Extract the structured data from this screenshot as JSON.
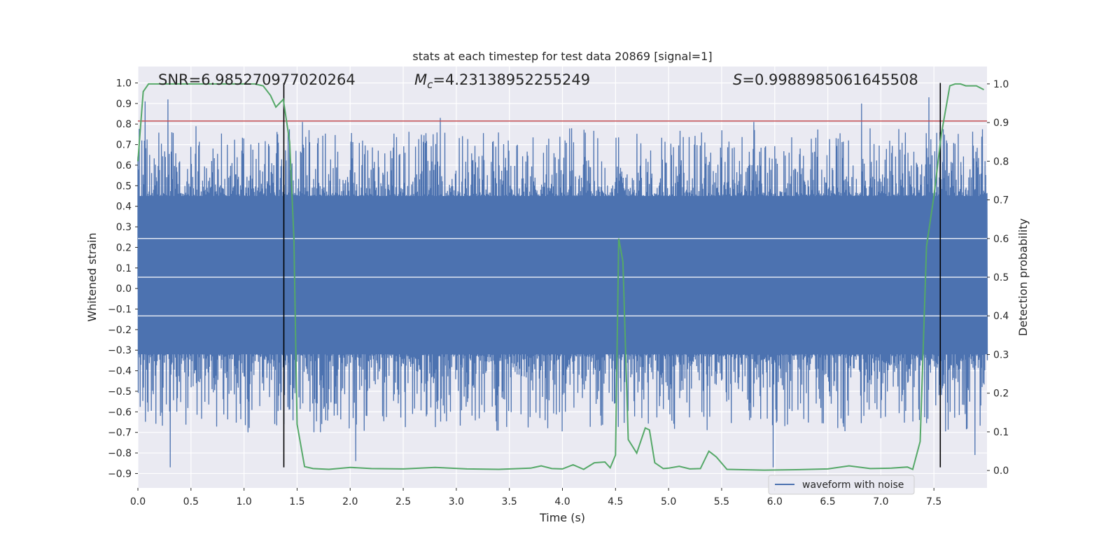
{
  "chart_data": {
    "type": "line",
    "title": "stats at each timestep for test data 20869 [signal=1]",
    "xlabel": "Time (s)",
    "ylabel": "Whitened strain",
    "y2label": "Detection probability",
    "xlim": [
      0.0,
      8.0
    ],
    "ylim": [
      -0.97,
      1.08
    ],
    "y2lim": [
      -0.045,
      1.045
    ],
    "xticks": [
      "0.0",
      "0.5",
      "1.0",
      "1.5",
      "2.0",
      "2.5",
      "3.0",
      "3.5",
      "4.0",
      "4.5",
      "5.0",
      "5.5",
      "6.0",
      "6.5",
      "7.0",
      "7.5"
    ],
    "xtick_values": [
      0.0,
      0.5,
      1.0,
      1.5,
      2.0,
      2.5,
      3.0,
      3.5,
      4.0,
      4.5,
      5.0,
      5.5,
      6.0,
      6.5,
      7.0,
      7.5
    ],
    "yticks": [
      "1.0",
      "0.9",
      "0.8",
      "0.7",
      "0.6",
      "0.5",
      "0.4",
      "0.3",
      "0.2",
      "0.1",
      "0.0",
      "−0.1",
      "−0.2",
      "−0.3",
      "−0.4",
      "−0.5",
      "−0.6",
      "−0.7",
      "−0.8",
      "−0.9"
    ],
    "ytick_values": [
      1.0,
      0.9,
      0.8,
      0.7,
      0.6,
      0.5,
      0.4,
      0.3,
      0.2,
      0.1,
      0.0,
      -0.1,
      -0.2,
      -0.3,
      -0.4,
      -0.5,
      -0.6,
      -0.7,
      -0.8,
      -0.9
    ],
    "y2ticks": [
      "1.0",
      "0.9",
      "0.8",
      "0.7",
      "0.6",
      "0.5",
      "0.4",
      "0.3",
      "0.2",
      "0.1",
      "0.0"
    ],
    "y2tick_values": [
      1.0,
      0.9,
      0.8,
      0.7,
      0.6,
      0.5,
      0.4,
      0.3,
      0.2,
      0.1,
      0.0
    ],
    "grid": true,
    "legend_position": "bottom-right",
    "annotations": {
      "snr": "SNR=6.985270977020264",
      "mc_symbol": "M",
      "mc_sub": "c",
      "mc_value": "=4.23138952255249",
      "s_symbol": "S",
      "s_value": "=0.9988985061645508"
    },
    "series": [
      {
        "name": "waveform with noise",
        "axis": "left",
        "color": "#4c72b0",
        "kind": "dense_noise",
        "duration": 8.0,
        "core_band": [
          -0.32,
          0.45
        ],
        "envelope_max": 0.92,
        "envelope_min": -0.87,
        "notable_peaks": [
          {
            "x": 0.07,
            "y": 0.91
          },
          {
            "x": 0.28,
            "y": 0.92
          },
          {
            "x": 0.55,
            "y": 0.79
          },
          {
            "x": 1.55,
            "y": 0.81
          },
          {
            "x": 2.85,
            "y": 0.83
          },
          {
            "x": 5.8,
            "y": 0.81
          },
          {
            "x": 6.82,
            "y": 0.9
          },
          {
            "x": 7.45,
            "y": 0.93
          },
          {
            "x": 0.3,
            "y": -0.87
          },
          {
            "x": 2.05,
            "y": -0.84
          },
          {
            "x": 5.98,
            "y": -0.87
          },
          {
            "x": 7.88,
            "y": -0.81
          }
        ]
      },
      {
        "name": "",
        "axis": "right",
        "color": "#55a868",
        "x": [
          0.0,
          0.05,
          0.1,
          0.15,
          0.2,
          0.3,
          0.5,
          0.7,
          0.9,
          1.1,
          1.18,
          1.25,
          1.3,
          1.37,
          1.43,
          1.47,
          1.5,
          1.57,
          1.65,
          1.8,
          2.0,
          2.2,
          2.5,
          2.8,
          3.1,
          3.4,
          3.7,
          3.8,
          3.9,
          4.0,
          4.1,
          4.2,
          4.3,
          4.4,
          4.45,
          4.5,
          4.53,
          4.57,
          4.62,
          4.7,
          4.78,
          4.82,
          4.87,
          4.95,
          5.0,
          5.1,
          5.2,
          5.3,
          5.38,
          5.45,
          5.55,
          5.7,
          5.9,
          6.2,
          6.5,
          6.7,
          6.9,
          7.1,
          7.25,
          7.3,
          7.37,
          7.43,
          7.5,
          7.57,
          7.65,
          7.7,
          7.75,
          7.8,
          7.9,
          7.97
        ],
        "values": [
          0.8,
          0.98,
          1.0,
          1.0,
          1.0,
          1.0,
          1.0,
          1.0,
          1.0,
          1.0,
          0.995,
          0.97,
          0.94,
          0.96,
          0.85,
          0.6,
          0.12,
          0.01,
          0.005,
          0.003,
          0.008,
          0.005,
          0.004,
          0.008,
          0.004,
          0.003,
          0.006,
          0.012,
          0.005,
          0.004,
          0.015,
          0.003,
          0.02,
          0.022,
          0.007,
          0.04,
          0.6,
          0.54,
          0.08,
          0.045,
          0.11,
          0.105,
          0.02,
          0.005,
          0.006,
          0.011,
          0.004,
          0.005,
          0.05,
          0.035,
          0.003,
          0.002,
          0.001,
          0.002,
          0.004,
          0.012,
          0.005,
          0.006,
          0.009,
          0.003,
          0.075,
          0.58,
          0.71,
          0.87,
          0.995,
          1.0,
          1.0,
          0.995,
          0.995,
          0.985
        ]
      }
    ],
    "hlines": [
      {
        "axis": "left",
        "y": 0.815,
        "color": "#c44e52"
      }
    ],
    "vlines": [
      {
        "x": 1.375,
        "ymin": -0.87,
        "ymax": 1.0,
        "color": "#000000"
      },
      {
        "x": 7.56,
        "ymin": -0.87,
        "ymax": 1.0,
        "color": "#000000"
      }
    ]
  }
}
